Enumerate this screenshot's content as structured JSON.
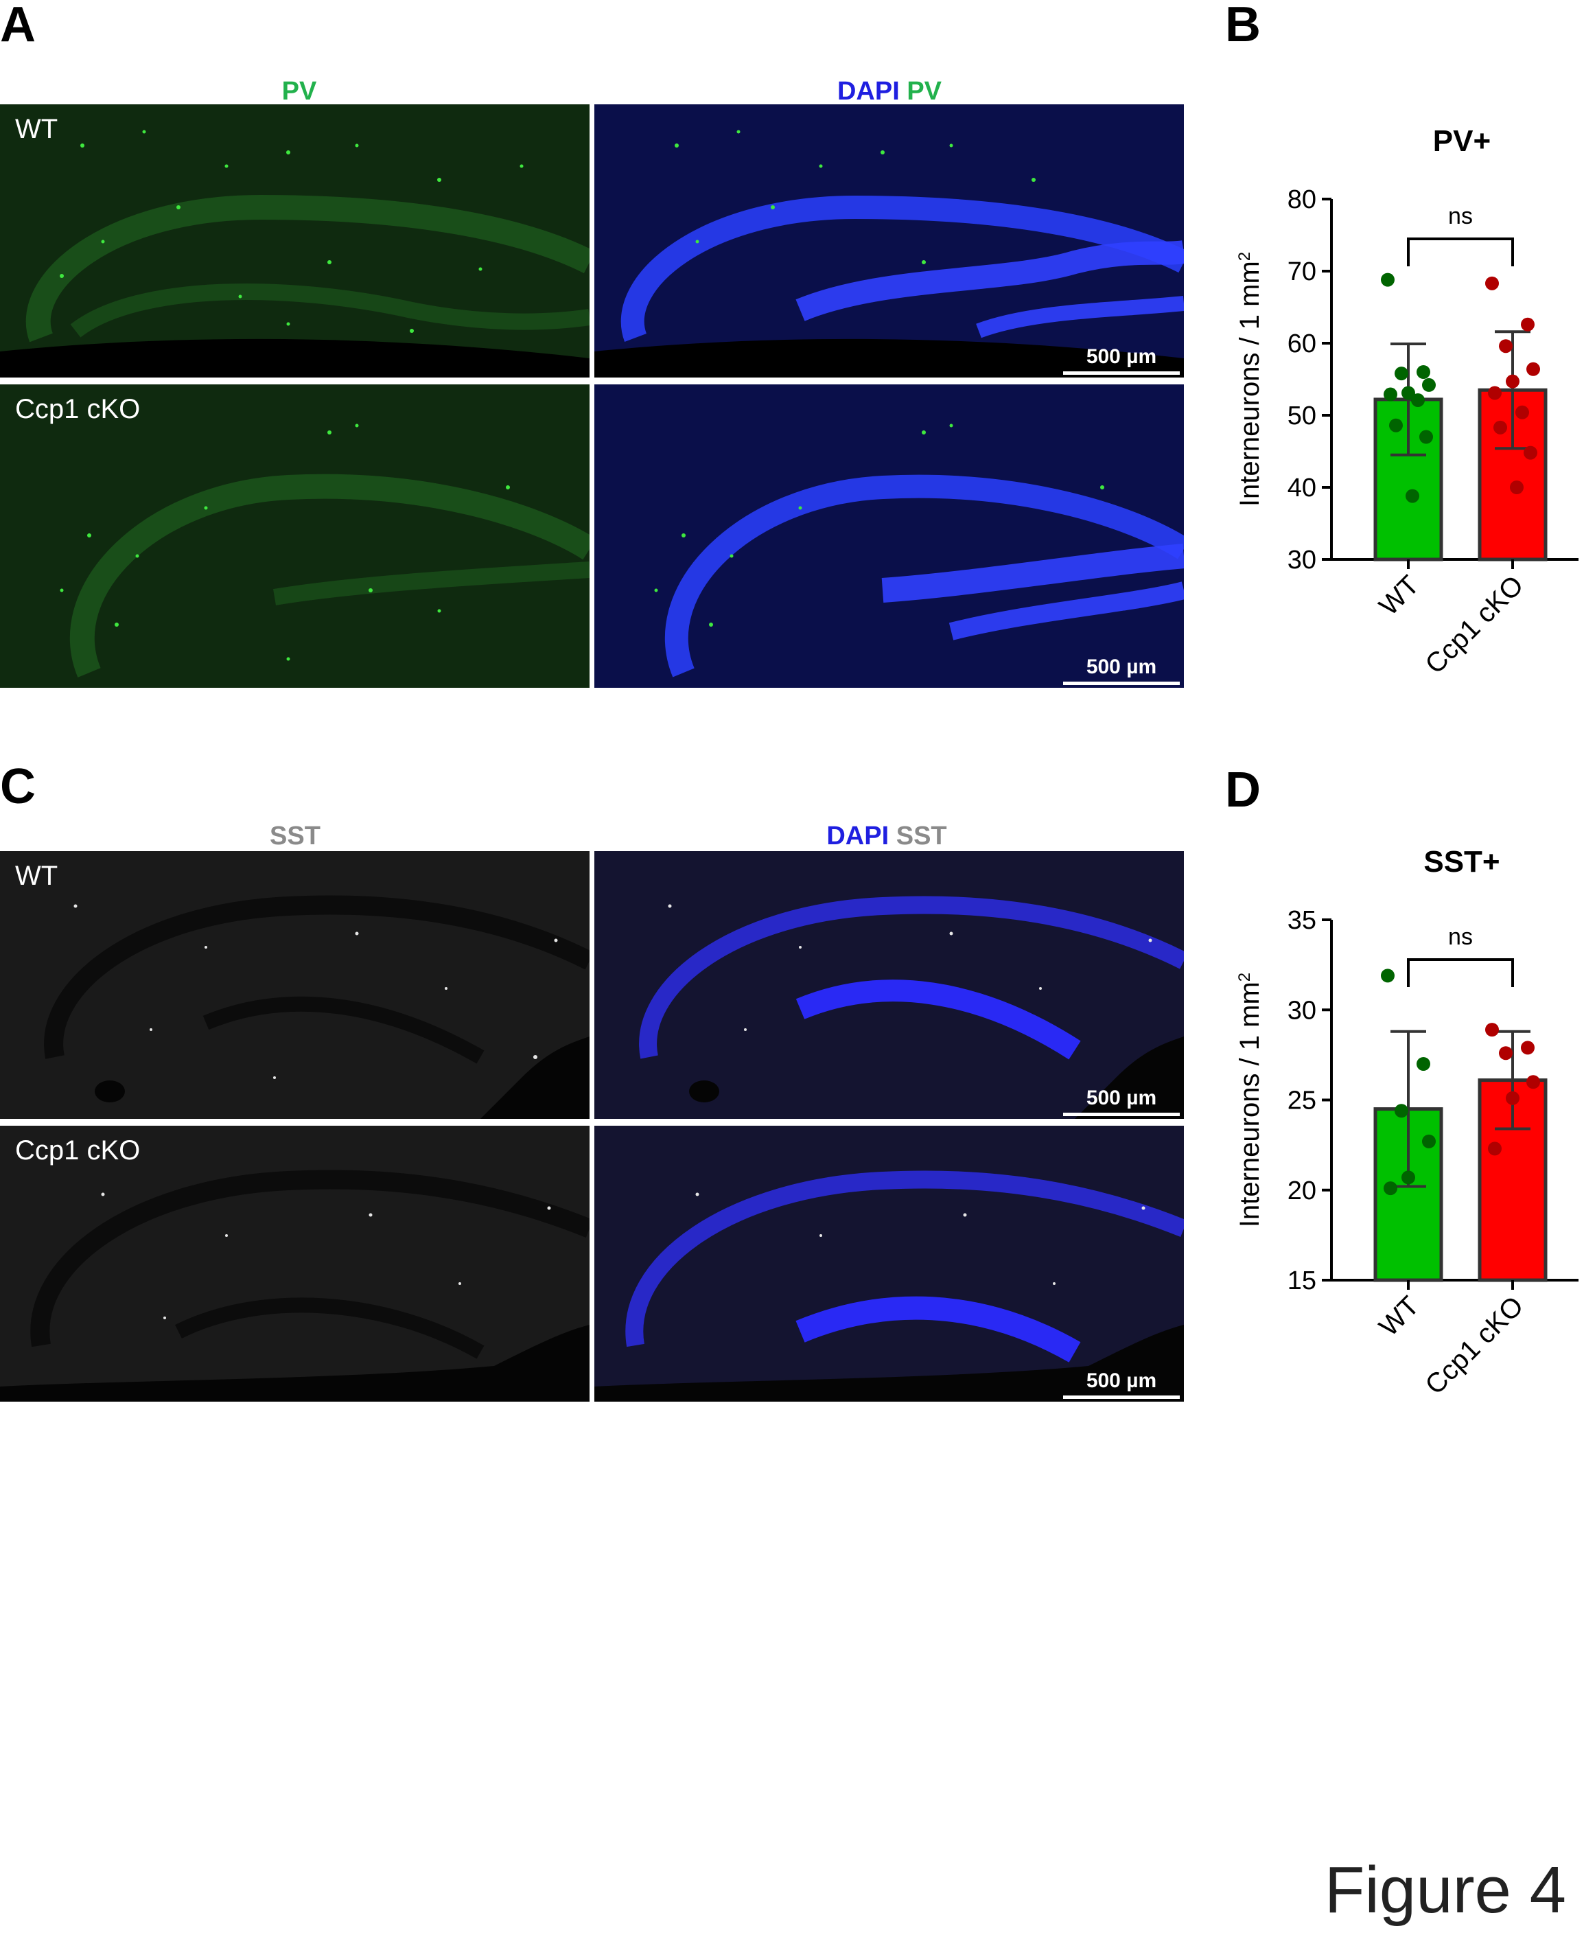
{
  "panels": {
    "A": {
      "letter": "A",
      "title_left": "PV",
      "title_right_dapi": "DAPI",
      "title_right_marker": "PV",
      "row1_label": "WT",
      "row2_label": "Ccp1 cKO",
      "scalebar_label": "500 µm",
      "colors": {
        "pv": "#22b14c",
        "dapi": "#1f1fe0"
      }
    },
    "B": {
      "letter": "B"
    },
    "C": {
      "letter": "C",
      "title_left": "SST",
      "title_right_dapi": "DAPI",
      "title_right_marker": "SST",
      "row1_label": "WT",
      "row2_label": "Ccp1 cKO",
      "scalebar_label": "500 µm",
      "colors": {
        "sst": "#8a8a8a",
        "dapi": "#1f1fe0"
      }
    },
    "D": {
      "letter": "D"
    }
  },
  "figure_label": "Figure 4",
  "chart_data": [
    {
      "type": "bar",
      "panel": "B",
      "title": "PV+",
      "ylabel": "Interneurons / 1 mm",
      "ylabel_superscript": "2",
      "categories": [
        "WT",
        "Ccp1 cKO"
      ],
      "ylim": [
        30,
        80
      ],
      "yticks": [
        "30",
        "40",
        "50",
        "60",
        "70",
        "80"
      ],
      "means": [
        52.2,
        53.5
      ],
      "sd": [
        7.7,
        8.1
      ],
      "bar_colors": [
        "#00c000",
        "#ff0000"
      ],
      "point_colors": [
        "#006400",
        "#b00000"
      ],
      "points": [
        [
          68.8,
          56.0,
          55.8,
          54.2,
          53.1,
          52.9,
          52.1,
          48.6,
          47.0,
          38.8
        ],
        [
          68.3,
          62.6,
          59.6,
          56.4,
          54.7,
          53.1,
          50.4,
          48.3,
          44.8,
          40.0
        ]
      ],
      "significance": "ns"
    },
    {
      "type": "bar",
      "panel": "D",
      "title": "SST+",
      "ylabel": "Interneurons / 1 mm",
      "ylabel_superscript": "2",
      "categories": [
        "WT",
        "Ccp1 cKO"
      ],
      "ylim": [
        15,
        35
      ],
      "yticks": [
        "15",
        "20",
        "25",
        "30",
        "35"
      ],
      "means": [
        24.5,
        26.1
      ],
      "sd": [
        4.3,
        2.7
      ],
      "bar_colors": [
        "#00c000",
        "#ff0000"
      ],
      "point_colors": [
        "#006400",
        "#b00000"
      ],
      "points": [
        [
          31.9,
          27.0,
          24.4,
          22.7,
          20.7,
          20.1
        ],
        [
          28.9,
          27.9,
          27.6,
          26.0,
          25.1,
          22.3
        ]
      ],
      "significance": "ns"
    }
  ]
}
